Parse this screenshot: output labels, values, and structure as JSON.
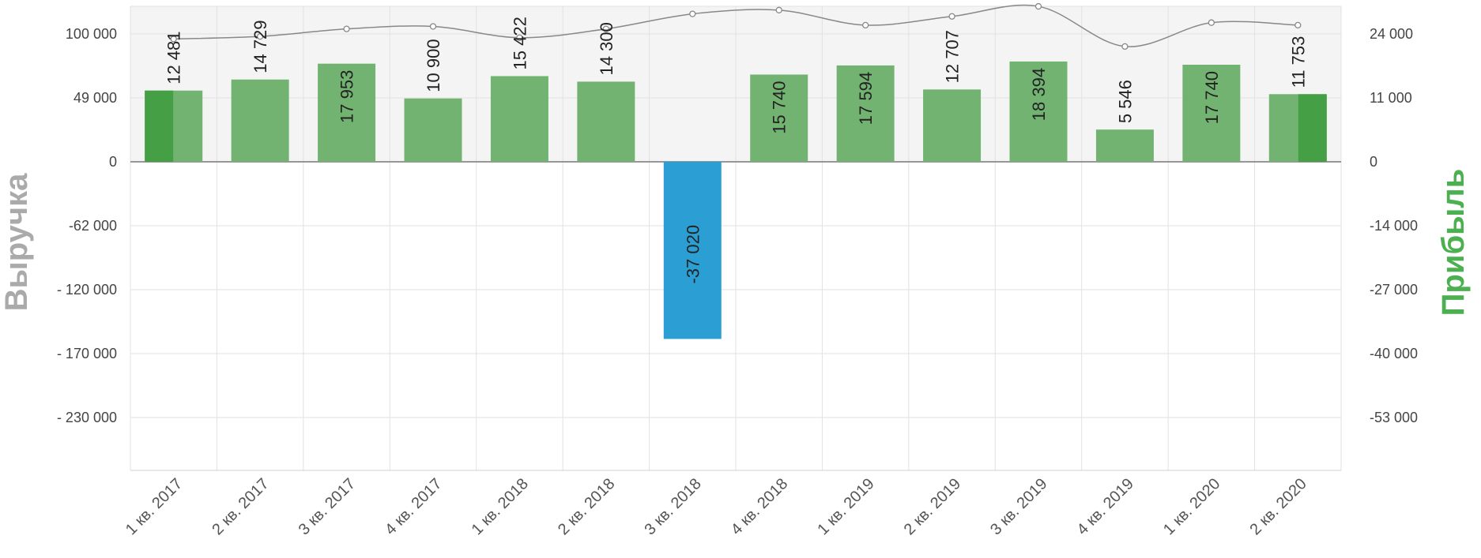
{
  "chart_data": {
    "type": "bar",
    "categories": [
      "1 кв. 2017",
      "2 кв. 2017",
      "3 кв. 2017",
      "4 кв. 2017",
      "1 кв. 2018",
      "2 кв. 2018",
      "3 кв. 2018",
      "4 кв. 2018",
      "1 кв. 2019",
      "2 кв. 2019",
      "3 кв. 2019",
      "4 кв. 2019",
      "1 кв. 2020",
      "2 кв. 2020"
    ],
    "left_axis": {
      "title": "Выручка",
      "ticks": [
        100000,
        49000,
        0,
        -62000,
        -120000,
        -170000,
        -230000
      ],
      "tick_labels": [
        "100 000",
        "49 000",
        "0",
        "-62 000",
        "- 120 000",
        "- 170 000",
        "- 230 000"
      ],
      "color": "#aaaaaa"
    },
    "right_axis": {
      "title": "Прибыль",
      "ticks": [
        24000,
        11000,
        0,
        -14000,
        -27000,
        -40000,
        -53000
      ],
      "tick_labels": [
        "24 000",
        "11 000",
        "0",
        "-14 000",
        "-27 000",
        "-40 000",
        "-53 000"
      ],
      "color": "#4caf50"
    },
    "series": [
      {
        "type": "bar",
        "axis": "right",
        "values": [
          12481,
          14729,
          17953,
          10900,
          15422,
          14300,
          -37020,
          15740,
          17594,
          12707,
          18394,
          5546,
          17740,
          11753
        ],
        "labels": [
          "12 481",
          "14 729",
          "17 953",
          "10 900",
          "15 422",
          "14 300",
          "-37 020",
          "15 740",
          "17 594",
          "12 707",
          "18 394",
          "5 546",
          "17 740",
          "11 753"
        ],
        "positive_color": "#72b372",
        "negative_color": "#2b9fd4",
        "highlight_color": "#45a045"
      },
      {
        "type": "line",
        "axis": "left",
        "values": [
          96000,
          98000,
          104000,
          106000,
          97000,
          104000,
          116000,
          119000,
          107000,
          114000,
          122000,
          90000,
          109000,
          107000
        ],
        "color": "#888888"
      }
    ],
    "grid": true,
    "legend": "none"
  }
}
